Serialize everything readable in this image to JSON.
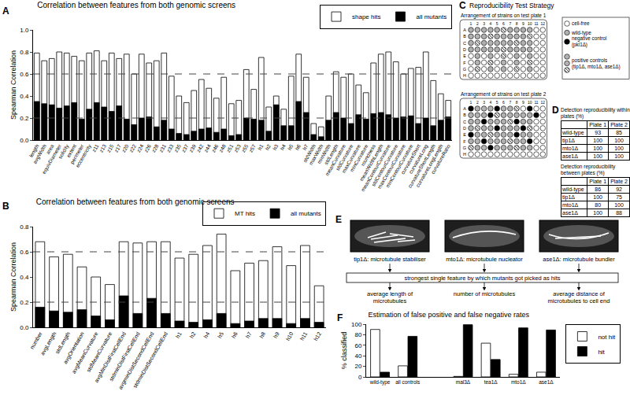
{
  "chart_data": [
    {
      "type": "bar",
      "title": "Correlation between features from both genomic screens",
      "annotations": [
        "A"
      ],
      "y_label": "Spearman Correlation",
      "categories": [
        "length",
        "avgWidth",
        "area",
        "equivDiameter",
        "solidity",
        "extent",
        "perimeter",
        "eccentricity",
        "z11",
        "z13",
        "z15",
        "z17",
        "z20",
        "z22",
        "z24",
        "z26",
        "z28",
        "z31",
        "z33",
        "z35",
        "z37",
        "z39",
        "z42",
        "z44",
        "z46",
        "z48",
        "z51",
        "z53",
        "z55",
        "z57",
        "h1",
        "h2",
        "h3",
        "h4",
        "h5",
        "h6",
        "h7",
        "stdWidth",
        "maxWidth",
        "minWidth",
        "stdLength",
        "meanCurvature",
        "stdCurvature",
        "maxCurvature",
        "minCurvature",
        "roundness",
        "meanWidthLength",
        "meanContourCurvature",
        "stdContourCurvature",
        "maxContourCurvature",
        "minContourCurvature",
        "curvatureShort",
        "curvatureLong",
        "curvatureShortLength",
        "curvatureLongLength",
        "curvatureRatio"
      ],
      "series": [
        {
          "name": "shape hits",
          "color": "#ffffff",
          "values": [
            0.79,
            0.72,
            0.74,
            0.8,
            0.79,
            0.76,
            0.72,
            0.79,
            0.81,
            0.72,
            0.79,
            0.74,
            0.78,
            0.6,
            0.78,
            0.7,
            0.72,
            0.79,
            0.58,
            0.4,
            0.34,
            0.45,
            0.55,
            0.47,
            0.38,
            0.57,
            0.33,
            0.36,
            0.64,
            0.46,
            0.75,
            0.3,
            0.4,
            0.28,
            0.58,
            0.78,
            0.57,
            0.15,
            0.12,
            0.4,
            0.62,
            0.57,
            0.6,
            0.5,
            0.43,
            0.7,
            0.78,
            0.8,
            0.71,
            0.6,
            0.65,
            0.66,
            0.8,
            0.54,
            0.42,
            0.36
          ]
        },
        {
          "name": "all mutants",
          "color": "#000000",
          "values": [
            0.35,
            0.33,
            0.32,
            0.29,
            0.31,
            0.34,
            0.19,
            0.28,
            0.34,
            0.3,
            0.26,
            0.31,
            0.19,
            0.14,
            0.2,
            0.21,
            0.12,
            0.18,
            0.1,
            0.06,
            0.05,
            0.08,
            0.1,
            0.11,
            0.07,
            0.1,
            0.04,
            0.05,
            0.2,
            0.19,
            0.18,
            0.08,
            0.32,
            0.13,
            0.13,
            0.35,
            0.25,
            0.05,
            0.03,
            0.18,
            0.25,
            0.2,
            0.15,
            0.23,
            0.19,
            0.24,
            0.25,
            0.23,
            0.2,
            0.21,
            0.22,
            0.15,
            0.2,
            0.13,
            0.18,
            0.21
          ]
        }
      ],
      "ylim": [
        0,
        1
      ],
      "yticks": [
        {
          "value": 0,
          "label": "0.0"
        },
        {
          "value": 0.2,
          "label": "0.2"
        },
        {
          "value": 0.4,
          "label": "0.4"
        },
        {
          "value": 0.6,
          "label": "0.6"
        },
        {
          "value": 0.8,
          "label": "0.8"
        },
        {
          "value": 1,
          "label": "1.0"
        }
      ],
      "hlines": [
        0.2,
        0.6
      ],
      "grid": false,
      "legend": "top right"
    },
    {
      "type": "bar",
      "title": "Correlation between features from both genomic screens",
      "annotations": [
        "B"
      ],
      "y_label": "Spearman Correlation",
      "categories": [
        "number",
        "avgLength",
        "stdLength",
        "avgOrientation",
        "avgMeanCurvature",
        "stdMeanCurvature",
        "avgMinDistFirstCellEnd",
        "stdminDistFirstCellEnd",
        "avgminDistSecondCellEnd",
        "stdminDistSecondCellEnd",
        "h1",
        "h2",
        "h4",
        "h5",
        "h6",
        "h7",
        "h8",
        "h9",
        "h10",
        "h11",
        "h12"
      ],
      "series": [
        {
          "name": "MT hits",
          "color": "#ffffff",
          "values": [
            0.68,
            0.56,
            0.58,
            0.48,
            0.4,
            0.34,
            0.68,
            0.67,
            0.68,
            0.68,
            0.55,
            0.58,
            0.65,
            0.74,
            0.45,
            0.51,
            0.53,
            0.64,
            0.49,
            0.65,
            0.33
          ]
        },
        {
          "name": "all mutants",
          "color": "#000000",
          "values": [
            0.16,
            0.13,
            0.12,
            0.14,
            0.09,
            0.06,
            0.25,
            0.11,
            0.23,
            0.11,
            0.05,
            0.04,
            0.06,
            0.11,
            0.03,
            0.05,
            0.07,
            0.07,
            0.03,
            0.07,
            0.04
          ]
        }
      ],
      "ylim": [
        0,
        0.8
      ],
      "yticks": [
        {
          "value": 0,
          "label": "0.0"
        },
        {
          "value": 0.2,
          "label": "0.2"
        },
        {
          "value": 0.4,
          "label": "0.4"
        },
        {
          "value": 0.6,
          "label": "0.6"
        },
        {
          "value": 0.8,
          "label": "0.8"
        }
      ],
      "hlines": [
        0.2,
        0.6
      ],
      "grid": false,
      "legend": "top right"
    },
    {
      "type": "bar",
      "title": "Estimation of false positive and false negative rates",
      "annotations": [
        "F"
      ],
      "y_label": "% classified",
      "categories": [
        "wild-type",
        "all controls",
        null,
        "mal3Δ",
        "tea1Δ",
        "mto1Δ",
        "ase1Δ"
      ],
      "series": [
        {
          "name": "not hit",
          "color": "#ffffff",
          "values": [
            90,
            21,
            null,
            1,
            64,
            5,
            9
          ]
        },
        {
          "name": "hit",
          "color": "#000000",
          "values": [
            9,
            77,
            null,
            99,
            33,
            93,
            89
          ]
        }
      ],
      "ylim": [
        0,
        100
      ],
      "yticks": [
        0,
        20,
        40,
        60,
        80,
        100
      ],
      "grid": false,
      "legend": "right"
    }
  ],
  "panel_c": {
    "letter": "C",
    "title": "Reproducibility Test Strategy",
    "rows": [
      "A",
      "B",
      "C",
      "D",
      "E",
      "F",
      "G",
      "H"
    ],
    "columns": [
      1,
      2,
      3,
      4,
      5,
      6,
      7,
      8,
      9,
      10,
      11,
      12
    ],
    "legend": [
      {
        "label": "cell-free",
        "strains": [
          "cell-free"
        ]
      },
      {
        "label": "wild-type",
        "strains": [
          "wild-type"
        ]
      },
      {
        "label": "negative control (pkl1Δ)",
        "strains": [
          "pkl1Δ"
        ]
      },
      {
        "label": "positive controls (tip1Δ, mto1Δ, ase1Δ)",
        "strains": [
          "tip1Δ",
          "mto1Δ",
          "ase1Δ"
        ]
      }
    ],
    "plates": [
      {
        "title": "Arrangement of strains on test plate 1",
        "wells": [
          [
            "wild-type",
            "tip1Δ",
            "wild-type",
            "mto1Δ",
            "wild-type",
            "ase1Δ",
            "wild-type",
            "tip1Δ",
            "wild-type",
            "mto1Δ",
            "cell-free",
            "cell-free"
          ],
          [
            "wild-type",
            "mto1Δ",
            "wild-type",
            "ase1Δ",
            "wild-type",
            "tip1Δ",
            "wild-type",
            "mto1Δ",
            "wild-type",
            "ase1Δ",
            "cell-free",
            "cell-free"
          ],
          [
            "wild-type",
            "ase1Δ",
            "wild-type",
            "tip1Δ",
            "wild-type",
            "mto1Δ",
            "wild-type",
            "ase1Δ",
            "wild-type",
            "tip1Δ",
            "cell-free",
            "cell-free"
          ],
          [
            "wild-type",
            "tip1Δ",
            "wild-type",
            "mto1Δ",
            "wild-type",
            "ase1Δ",
            "wild-type",
            "tip1Δ",
            "wild-type",
            "mto1Δ",
            "cell-free",
            "cell-free"
          ],
          [
            "cell-free",
            "tip1Δ",
            "cell-free",
            "mto1Δ",
            "cell-free",
            "ase1Δ",
            "cell-free",
            "tip1Δ",
            "cell-free",
            "mto1Δ",
            "cell-free",
            "cell-free"
          ],
          [
            "cell-free",
            "mto1Δ",
            "cell-free",
            "ase1Δ",
            "cell-free",
            "tip1Δ",
            "cell-free",
            "mto1Δ",
            "cell-free",
            "ase1Δ",
            "cell-free",
            "cell-free"
          ],
          [
            "cell-free",
            "ase1Δ",
            "cell-free",
            "tip1Δ",
            "cell-free",
            "mto1Δ",
            "cell-free",
            "ase1Δ",
            "cell-free",
            "tip1Δ",
            "cell-free",
            "cell-free"
          ],
          [
            "cell-free",
            "cell-free",
            "cell-free",
            "cell-free",
            "cell-free",
            "cell-free",
            "cell-free",
            "cell-free",
            "cell-free",
            "cell-free",
            "cell-free",
            "cell-free"
          ]
        ]
      },
      {
        "title": "Arrangement of strains on test plate 2",
        "wells": [
          [
            "pkl1Δ",
            "wild-type",
            "tip1Δ",
            "wild-type",
            "pkl1Δ",
            "mto1Δ",
            "wild-type",
            "ase1Δ",
            "cell-free",
            "pkl1Δ",
            "cell-free",
            "cell-free"
          ],
          [
            "wild-type",
            "mto1Δ",
            "wild-type",
            "pkl1Δ",
            "ase1Δ",
            "wild-type",
            "tip1Δ",
            "wild-type",
            "mto1Δ",
            "wild-type",
            "pkl1Δ",
            "cell-free"
          ],
          [
            "tip1Δ",
            "wild-type",
            "pkl1Δ",
            "wild-type",
            "mto1Δ",
            "wild-type",
            "ase1Δ",
            "pkl1Δ",
            "wild-type",
            "tip1Δ",
            "cell-free",
            "cell-free"
          ],
          [
            "wild-type",
            "ase1Δ",
            "wild-type",
            "tip1Δ",
            "pkl1Δ",
            "wild-type",
            "mto1Δ",
            "wild-type",
            "pkl1Δ",
            "ase1Δ",
            "cell-free",
            "cell-free"
          ],
          [
            "pkl1Δ",
            "mto1Δ",
            "wild-type",
            "ase1Δ",
            "wild-type",
            "tip1Δ",
            "wild-type",
            "pkl1Δ",
            "mto1Δ",
            "wild-type",
            "cell-free",
            "cell-free"
          ],
          [
            "wild-type",
            "tip1Δ",
            "pkl1Δ",
            "wild-type",
            "mto1Δ",
            "wild-type",
            "ase1Δ",
            "wild-type",
            "tip1Δ",
            "pkl1Δ",
            "cell-free",
            "cell-free"
          ],
          [
            "ase1Δ",
            "wild-type",
            "mto1Δ",
            "pkl1Δ",
            "wild-type",
            "tip1Δ",
            "wild-type",
            "ase1Δ",
            "wild-type",
            "mto1Δ",
            "cell-free",
            "cell-free"
          ],
          [
            "cell-free",
            "cell-free",
            "cell-free",
            "cell-free",
            "cell-free",
            "cell-free",
            "cell-free",
            "cell-free",
            "cell-free",
            "cell-free",
            "cell-free",
            "cell-free"
          ]
        ]
      }
    ]
  },
  "panel_d": {
    "letter": "D",
    "tables": [
      {
        "title": "Detection reproducibility within plates (%)",
        "columns": [
          "Plate 1",
          "Plate 2"
        ],
        "rows": [
          {
            "label": "wild-type",
            "values": [
              93,
              85
            ]
          },
          {
            "label": "tip1Δ",
            "values": [
              100,
              100
            ]
          },
          {
            "label": "mto1Δ",
            "values": [
              100,
              100
            ]
          },
          {
            "label": "ase1Δ",
            "values": [
              100,
              100
            ]
          }
        ]
      },
      {
        "title": "Detection reproducibility between plates (%)",
        "columns": [
          "Plate 1",
          "Plate 2"
        ],
        "rows": [
          {
            "label": "wild-type",
            "values": [
              86,
              92
            ]
          },
          {
            "label": "tip1Δ",
            "values": [
              100,
              75
            ]
          },
          {
            "label": "mto1Δ",
            "values": [
              80,
              100
            ]
          },
          {
            "label": "ase1Δ",
            "values": [
              100,
              88
            ]
          }
        ]
      }
    ]
  },
  "panel_e": {
    "letter": "E",
    "box": "strongest single feature by which mutants got picked as hits",
    "items": [
      {
        "label": "tip1Δ: microtubule stabiliser",
        "feature": "average length of microtubules"
      },
      {
        "label": "mto1Δ: microtubule nucleator",
        "feature": "number of microtubules"
      },
      {
        "label": "ase1Δ: microtubule bundler",
        "feature": "average distance of microtubules to cell end"
      }
    ]
  }
}
